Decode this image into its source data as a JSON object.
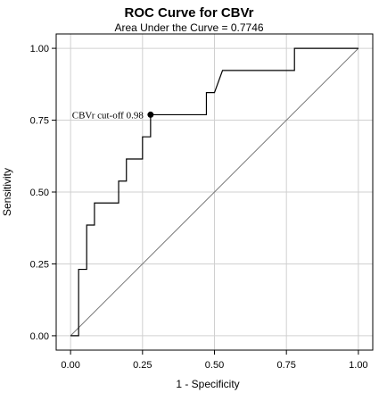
{
  "chart_data": {
    "type": "line",
    "title": "ROC Curve for CBVr",
    "subtitle": "Area Under the Curve = 0.7746",
    "xlabel": "1 - Specificity",
    "ylabel": "Sensitivity",
    "xlim": [
      -0.05,
      1.05
    ],
    "ylim": [
      -0.05,
      1.05
    ],
    "xticks": [
      0.0,
      0.25,
      0.5,
      0.75,
      1.0
    ],
    "xtick_labels": [
      "0.00",
      "0.25",
      "0.50",
      "0.75",
      "1.00"
    ],
    "yticks": [
      0.0,
      0.25,
      0.5,
      0.75,
      1.0
    ],
    "ytick_labels": [
      "0.00",
      "0.25",
      "0.50",
      "0.75",
      "1.00"
    ],
    "grid": true,
    "series": [
      {
        "values": [
          [
            0.0,
            0.0
          ],
          [
            0.028,
            0.0
          ],
          [
            0.028,
            0.231
          ],
          [
            0.056,
            0.231
          ],
          [
            0.056,
            0.385
          ],
          [
            0.083,
            0.385
          ],
          [
            0.083,
            0.462
          ],
          [
            0.167,
            0.462
          ],
          [
            0.167,
            0.538
          ],
          [
            0.194,
            0.538
          ],
          [
            0.194,
            0.615
          ],
          [
            0.25,
            0.615
          ],
          [
            0.25,
            0.692
          ],
          [
            0.278,
            0.692
          ],
          [
            0.278,
            0.769
          ],
          [
            0.472,
            0.769
          ],
          [
            0.472,
            0.846
          ],
          [
            0.5,
            0.846
          ],
          [
            0.528,
            0.923
          ],
          [
            0.778,
            0.923
          ],
          [
            0.778,
            1.0
          ],
          [
            1.0,
            1.0
          ]
        ]
      }
    ],
    "reference_line": [
      [
        0.0,
        0.0
      ],
      [
        1.0,
        1.0
      ]
    ],
    "annotation": {
      "text": "CBVr cut-off 0.98",
      "x": 0.278,
      "y": 0.769
    },
    "colors": {
      "curve": "#000000",
      "reference": "#777777",
      "grid": "#d0d0d0"
    }
  }
}
